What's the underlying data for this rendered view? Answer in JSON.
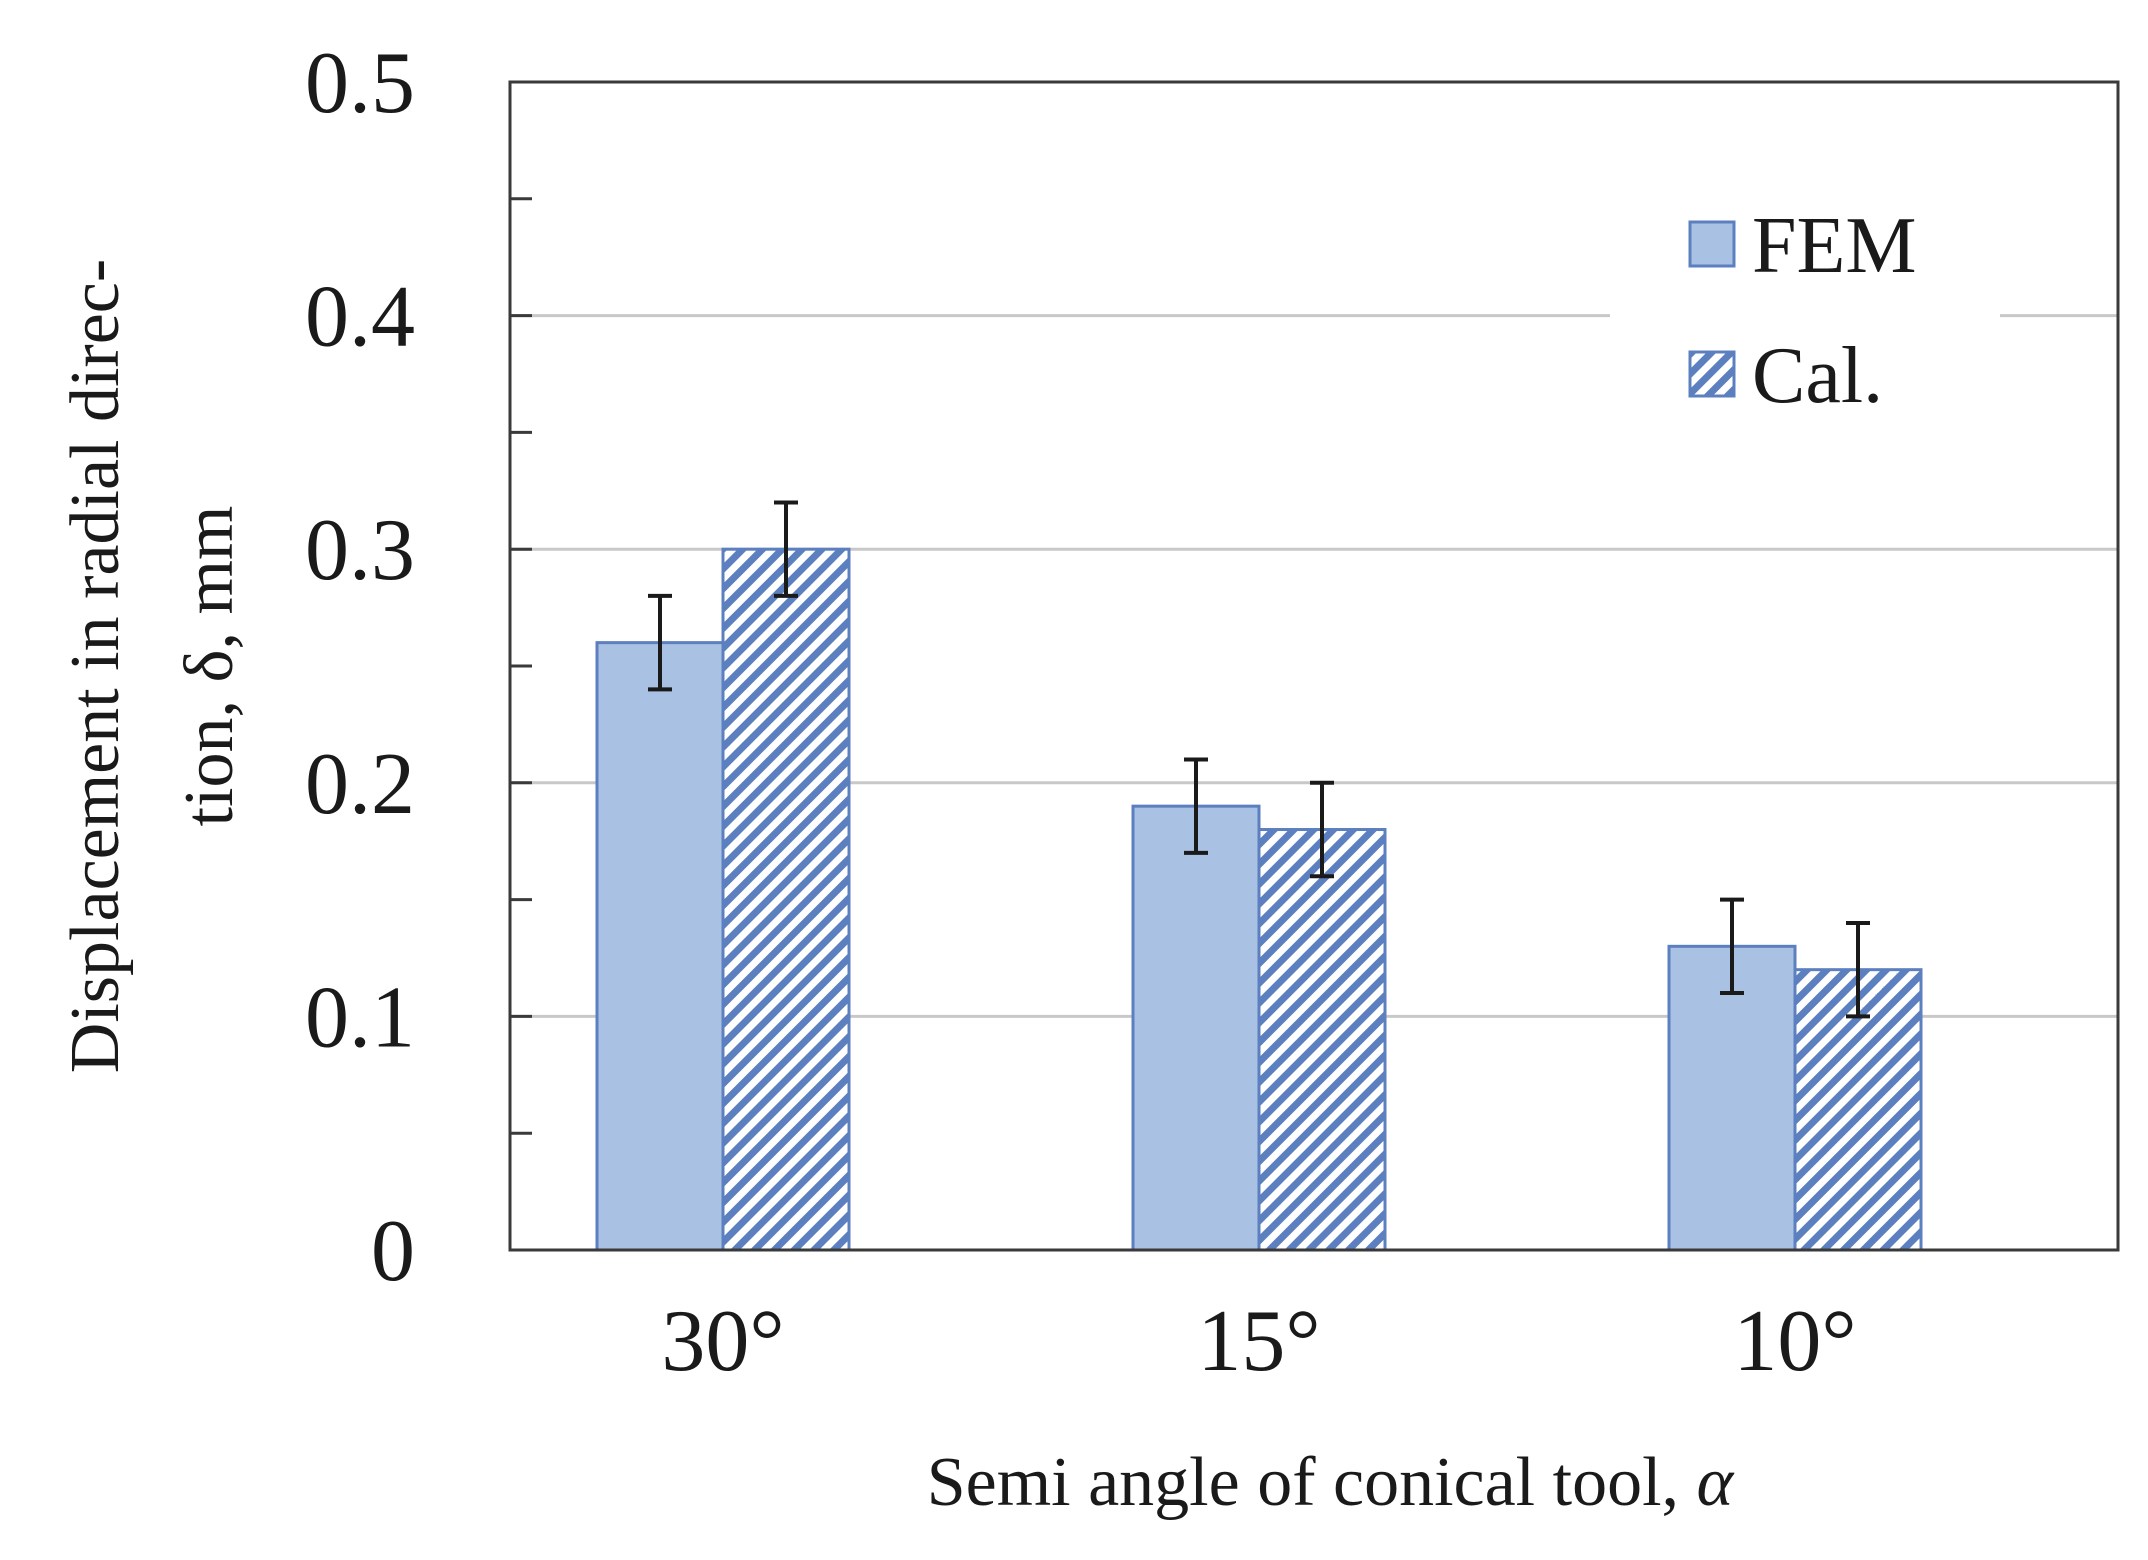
{
  "chart_data": {
    "type": "bar",
    "title": "",
    "xlabel": "Semi angle of conical tool, ",
    "xlabel_symbol": "α",
    "ylabel_line1": "Displacement in radial direc-",
    "ylabel_line2": "tion, δ, mm",
    "categories": [
      "30°",
      "15°",
      "10°"
    ],
    "series": [
      {
        "name": "FEM",
        "pattern": "solid",
        "values": [
          0.26,
          0.19,
          0.13
        ],
        "errors": [
          0.02,
          0.02,
          0.02
        ]
      },
      {
        "name": "Cal.",
        "pattern": "hatched",
        "values": [
          0.3,
          0.18,
          0.12
        ],
        "errors": [
          0.02,
          0.02,
          0.02
        ]
      }
    ],
    "ylim": [
      0,
      0.5
    ],
    "yticks": [
      "0",
      "0.1",
      "0.2",
      "0.3",
      "0.4",
      "0.5"
    ],
    "grid": true,
    "legend_position": "top-right"
  },
  "colors": {
    "bar_fill": "#a9c1e3",
    "bar_edge": "#5c7fbf",
    "hatch": "#5c7fbf",
    "grid": "#c8c8c8",
    "axis": "#3a3a3a",
    "error": "#1a1a1a"
  }
}
